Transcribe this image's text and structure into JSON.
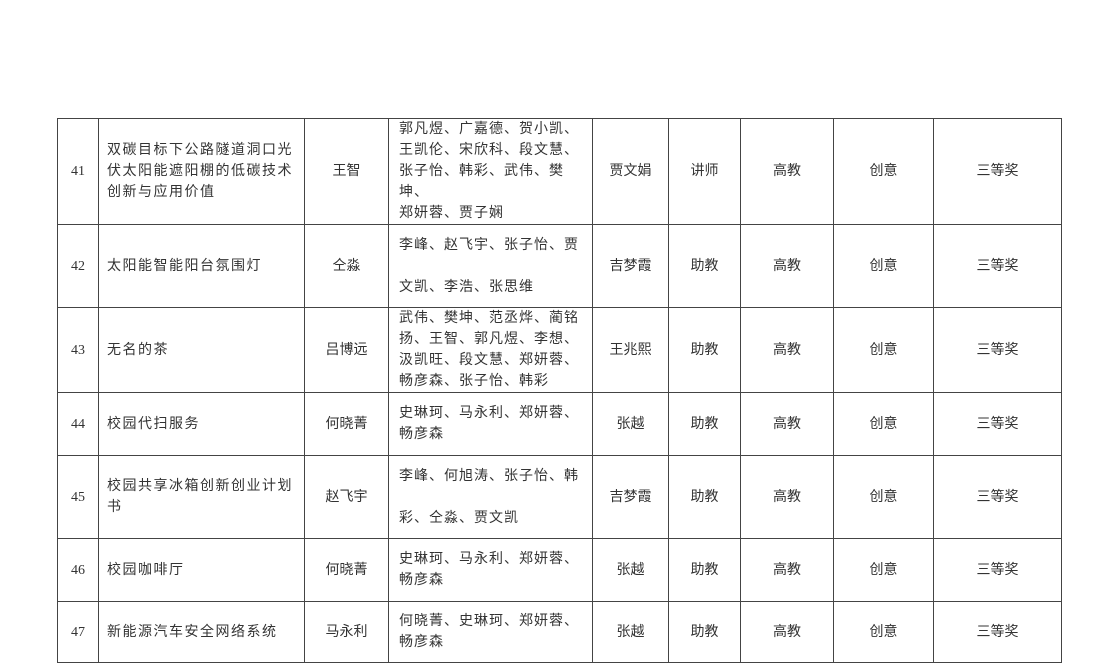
{
  "rows": [
    {
      "no": "41",
      "project": "双碳目标下公路隧道洞口光伏太阳能遮阳棚的低碳技术创新与应用价值",
      "leader": "王智",
      "members": "郭凡煜、广嘉德、贺小凯、\n王凯伦、宋欣科、段文慧、\n张子怡、韩彩、武伟、樊坤、\n郑妍蓉、贾子娴",
      "advisor": "贾文娟",
      "title": "讲师",
      "level": "高教",
      "category": "创意",
      "award": "三等奖"
    },
    {
      "no": "42",
      "project": "太阳能智能阳台氛围灯",
      "leader": "仝淼",
      "members": "李峰、赵飞宇、张子怡、贾\n\n文凯、李浩、张思维",
      "advisor": "吉梦霞",
      "title": "助教",
      "level": "高教",
      "category": "创意",
      "award": "三等奖"
    },
    {
      "no": "43",
      "project": "无名的茶",
      "leader": "吕博远",
      "members": "武伟、樊坤、范丞烨、蔺铭\n扬、王智、郭凡煜、李想、\n汲凯旺、段文慧、郑妍蓉、\n畅彦森、张子怡、韩彩",
      "advisor": "王兆熙",
      "title": "助教",
      "level": "高教",
      "category": "创意",
      "award": "三等奖"
    },
    {
      "no": "44",
      "project": "校园代扫服务",
      "leader": "何晓菁",
      "members": "史琳珂、马永利、郑妍蓉、\n畅彦森",
      "advisor": "张越",
      "title": "助教",
      "level": "高教",
      "category": "创意",
      "award": "三等奖"
    },
    {
      "no": "45",
      "project": "校园共享冰箱创新创业计划书",
      "leader": "赵飞宇",
      "members": "李峰、何旭涛、张子怡、韩\n\n彩、仝淼、贾文凯",
      "advisor": "吉梦霞",
      "title": "助教",
      "level": "高教",
      "category": "创意",
      "award": "三等奖"
    },
    {
      "no": "46",
      "project": "校园咖啡厅",
      "leader": "何晓菁",
      "members": "史琳珂、马永利、郑妍蓉、\n畅彦森",
      "advisor": "张越",
      "title": "助教",
      "level": "高教",
      "category": "创意",
      "award": "三等奖"
    },
    {
      "no": "47",
      "project": "新能源汽车安全网络系统",
      "leader": "马永利",
      "members": "何晓菁、史琳珂、郑妍蓉、\n畅彦森",
      "advisor": "张越",
      "title": "助教",
      "level": "高教",
      "category": "创意",
      "award": "三等奖"
    }
  ]
}
